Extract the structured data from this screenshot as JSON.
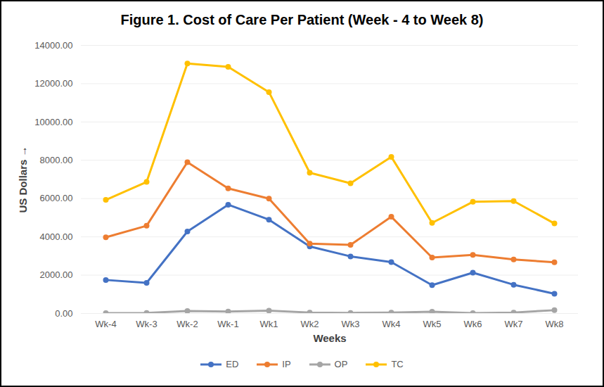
{
  "chart_data": {
    "type": "line",
    "title": "Figure 1. Cost of Care Per Patient (Week - 4 to Week 8)",
    "x_label": "Weeks",
    "y_label": "US Dollars",
    "categories": [
      "Wk-4",
      "Wk-3",
      "Wk-2",
      "Wk-1",
      "Wk1",
      "Wk2",
      "Wk3",
      "Wk4",
      "Wk5",
      "Wk6",
      "Wk7",
      "Wk8"
    ],
    "series": [
      {
        "name": "ED",
        "color": "#4472c4",
        "values": [
          1750,
          1600,
          4280,
          5680,
          4900,
          3500,
          2980,
          2680,
          1480,
          2130,
          1500,
          1030
        ]
      },
      {
        "name": "IP",
        "color": "#ed7d31",
        "values": [
          3980,
          4580,
          7900,
          6530,
          6000,
          3650,
          3580,
          5050,
          2920,
          3060,
          2820,
          2670
        ]
      },
      {
        "name": "OP",
        "color": "#a5a5a5",
        "values": [
          20,
          30,
          130,
          100,
          150,
          50,
          30,
          50,
          90,
          20,
          50,
          170
        ]
      },
      {
        "name": "TC",
        "color": "#ffc000",
        "values": [
          5930,
          6870,
          13050,
          12880,
          11560,
          7350,
          6800,
          8180,
          4730,
          5830,
          5870,
          4700
        ]
      }
    ],
    "ylim": [
      0,
      14000
    ],
    "yticks": [
      {
        "value": 0,
        "label": "0.00"
      },
      {
        "value": 2000,
        "label": "2000.00"
      },
      {
        "value": 4000,
        "label": "4000.00"
      },
      {
        "value": 6000,
        "label": "6000.00"
      },
      {
        "value": 8000,
        "label": "8000.00"
      },
      {
        "value": 10000,
        "label": "10000.00"
      },
      {
        "value": 12000,
        "label": "12000.00"
      },
      {
        "value": 14000,
        "label": "14000.00"
      }
    ],
    "grid": true,
    "legend": "bottom",
    "marker": "circle",
    "line_style": "solid"
  }
}
